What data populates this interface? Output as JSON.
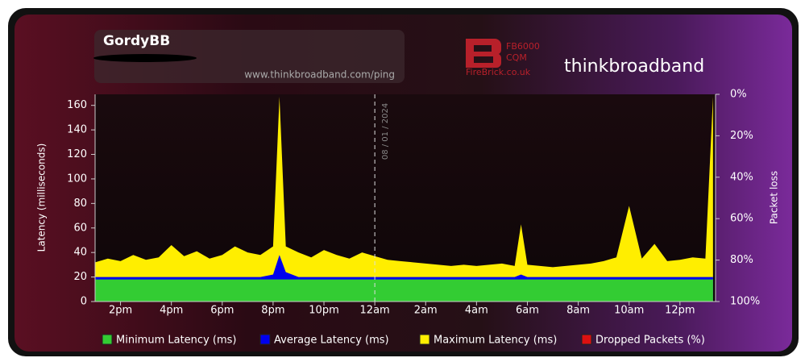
{
  "chart_data": {
    "type": "area",
    "title": "GordyBB",
    "subtitle": "www.thinkbroadband.com/ping",
    "logos": {
      "firebrick_model": "FB6000",
      "firebrick_tag": "CQM",
      "firebrick_site": "FireBrick.co.uk",
      "brand": "thinkbroadband"
    },
    "y_label": "Latency (milliseconds)",
    "y2_label": "Packet loss",
    "annotation": {
      "text": "08 / 01 / 2024",
      "x": 24
    },
    "x": [
      13,
      13.5,
      14,
      14.5,
      15,
      15.5,
      16,
      16.5,
      17,
      17.5,
      18,
      18.5,
      19,
      19.5,
      20,
      20.25,
      20.5,
      21,
      21.5,
      22,
      22.5,
      23,
      23.5,
      24,
      24.5,
      25,
      25.5,
      26,
      26.5,
      27,
      27.5,
      28,
      28.5,
      29,
      29.5,
      29.75,
      30,
      30.5,
      31,
      31.5,
      32,
      32.5,
      33,
      33.5,
      34,
      34.5,
      35,
      35.5,
      36,
      36.5,
      37,
      37.3
    ],
    "xlim": [
      13,
      37.4
    ],
    "xticks": [
      {
        "value": 14,
        "label": "2pm"
      },
      {
        "value": 16,
        "label": "4pm"
      },
      {
        "value": 18,
        "label": "6pm"
      },
      {
        "value": 20,
        "label": "8pm"
      },
      {
        "value": 22,
        "label": "10pm"
      },
      {
        "value": 24,
        "label": "12am"
      },
      {
        "value": 26,
        "label": "2am"
      },
      {
        "value": 28,
        "label": "4am"
      },
      {
        "value": 30,
        "label": "6am"
      },
      {
        "value": 32,
        "label": "8am"
      },
      {
        "value": 34,
        "label": "10am"
      },
      {
        "value": 36,
        "label": "12pm"
      }
    ],
    "ylim": [
      0,
      169
    ],
    "yticks": [
      0,
      20,
      40,
      60,
      80,
      100,
      120,
      140,
      160
    ],
    "y2lim": [
      0,
      100
    ],
    "y2_reversed": true,
    "y2ticks": [
      {
        "value": 0,
        "label": "0%"
      },
      {
        "value": 20,
        "label": "20%"
      },
      {
        "value": 40,
        "label": "40%"
      },
      {
        "value": 60,
        "label": "60%"
      },
      {
        "value": 80,
        "label": "80%"
      },
      {
        "value": 100,
        "label": "100%"
      }
    ],
    "grid": false,
    "legend": "bottom",
    "series": [
      {
        "name": "Maximum Latency (ms)",
        "color": "#ffee00",
        "values": [
          32,
          35,
          33,
          38,
          34,
          36,
          46,
          37,
          41,
          35,
          38,
          45,
          40,
          38,
          45,
          167,
          45,
          40,
          36,
          42,
          38,
          35,
          40,
          37,
          34,
          33,
          32,
          31,
          30,
          29,
          30,
          29,
          30,
          31,
          29,
          63,
          30,
          29,
          28,
          29,
          30,
          31,
          33,
          36,
          78,
          35,
          47,
          33,
          34,
          36,
          35,
          167
        ]
      },
      {
        "name": "Average Latency (ms)",
        "color": "#0000ee",
        "values": [
          20,
          20,
          20,
          20,
          20,
          20,
          20,
          20,
          20,
          20,
          20,
          20,
          20,
          20,
          22,
          38,
          24,
          20,
          20,
          20,
          20,
          20,
          20,
          20,
          20,
          20,
          20,
          20,
          20,
          20,
          20,
          20,
          20,
          20,
          20,
          22,
          20,
          20,
          20,
          20,
          20,
          20,
          20,
          20,
          20,
          20,
          20,
          20,
          20,
          20,
          20,
          20
        ]
      },
      {
        "name": "Minimum Latency (ms)",
        "color": "#33cc33",
        "values": [
          18,
          18,
          18,
          18,
          18,
          18,
          18,
          18,
          18,
          18,
          18,
          18,
          18,
          18,
          18,
          18,
          18,
          18,
          18,
          18,
          18,
          18,
          18,
          18,
          18,
          18,
          18,
          18,
          18,
          18,
          18,
          18,
          18,
          18,
          18,
          18,
          18,
          18,
          18,
          18,
          18,
          18,
          18,
          18,
          18,
          18,
          18,
          18,
          18,
          18,
          18,
          18
        ]
      },
      {
        "name": "Dropped Packets (%)",
        "color": "#dd1111",
        "axis": "y2",
        "values": [
          0,
          0,
          0,
          0,
          0,
          0,
          0,
          0,
          0,
          0,
          0,
          0,
          0,
          0,
          0,
          0,
          0,
          0,
          0,
          0,
          0,
          0,
          0,
          0,
          0,
          0,
          0,
          0,
          0,
          0,
          0,
          0,
          0,
          0,
          0,
          0,
          0,
          0,
          0,
          0,
          0,
          0,
          0,
          0,
          0,
          0,
          0,
          0,
          0,
          0,
          0,
          0
        ]
      }
    ]
  }
}
